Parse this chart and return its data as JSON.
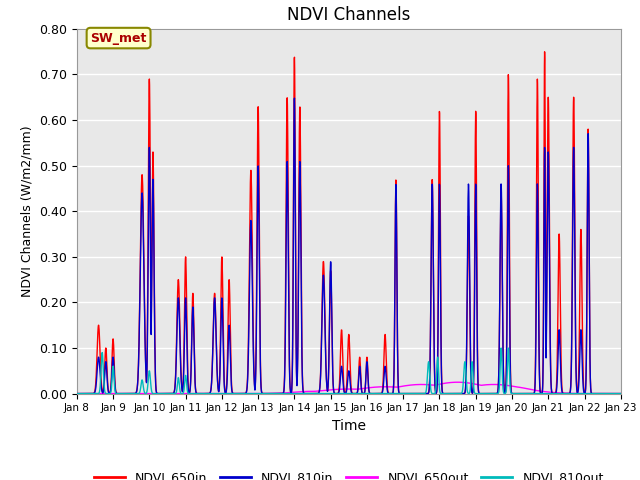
{
  "title": "NDVI Channels",
  "ylabel": "NDVI Channels (W/m2/mm)",
  "xlabel": "Time",
  "ylim": [
    0.0,
    0.8
  ],
  "annotation_text": "SW_met",
  "annotation_bg": "#FFFFCC",
  "annotation_border": "#888800",
  "annotation_text_color": "#AA0000",
  "bg_color": "#E8E8E8",
  "series": {
    "NDVI_650in": {
      "color": "#FF0000",
      "lw": 1.0
    },
    "NDVI_810in": {
      "color": "#0000CC",
      "lw": 1.0
    },
    "NDVI_650out": {
      "color": "#FF00FF",
      "lw": 1.0
    },
    "NDVI_810out": {
      "color": "#00BBBB",
      "lw": 1.0
    }
  },
  "xtick_labels": [
    "Jan 8",
    "Jan 9",
    "Jan 10",
    "Jan 11",
    "Jan 12",
    "Jan 13",
    "Jan 14",
    "Jan 15",
    "Jan 16",
    "Jan 17",
    "Jan 18",
    "Jan 19",
    "Jan 20",
    "Jan 21",
    "Jan 22",
    "Jan 23"
  ],
  "ytick_labels": [
    "0.00",
    "0.10",
    "0.20",
    "0.30",
    "0.40",
    "0.50",
    "0.60",
    "0.70",
    "0.80"
  ],
  "yticks": [
    0.0,
    0.1,
    0.2,
    0.3,
    0.4,
    0.5,
    0.6,
    0.7,
    0.8
  ]
}
